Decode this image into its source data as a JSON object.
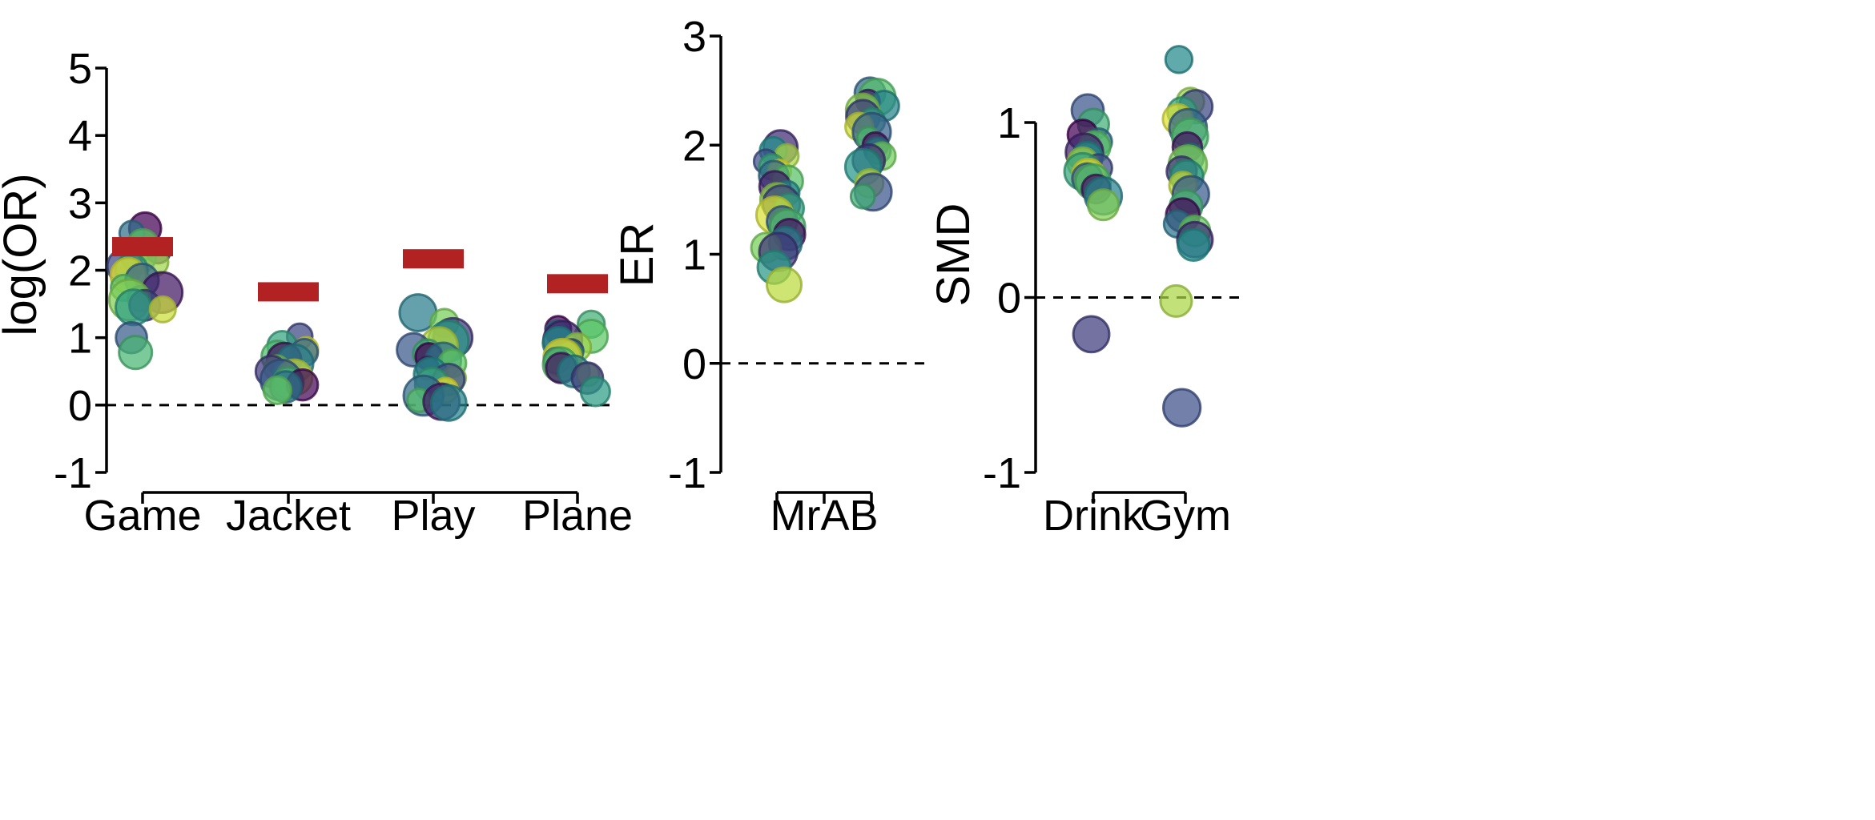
{
  "palette": [
    "#440154",
    "#3b528b",
    "#21918c",
    "#5ec962",
    "#fde725"
  ],
  "reference_color": "#b22222",
  "chart_data": [
    {
      "type": "scatter",
      "title": "",
      "xlabel": "",
      "ylabel": "log(OR)",
      "ylim": [
        -1,
        5
      ],
      "yticks": [
        "-1",
        "0",
        "1",
        "2",
        "3",
        "4",
        "5"
      ],
      "reference_line": 0,
      "categories": [
        "Game",
        "Jacket",
        "Play",
        "Plane"
      ],
      "reference_values": [
        2.35,
        1.68,
        2.17,
        1.8
      ],
      "points": [
        {
          "category": "Game",
          "values": [
            2.62,
            2.55,
            2.38,
            2.28,
            2.2,
            2.12,
            2.06,
            2.01,
            1.92,
            1.85,
            1.74,
            1.67,
            1.58,
            1.56,
            1.48,
            1.45,
            1.42,
            1.0,
            0.78
          ]
        },
        {
          "category": "Jacket",
          "values": [
            1.02,
            0.88,
            0.83,
            0.78,
            0.72,
            0.67,
            0.62,
            0.55,
            0.5,
            0.46,
            0.41,
            0.37,
            0.33,
            0.3,
            0.27,
            0.22
          ]
        },
        {
          "category": "Play",
          "values": [
            1.37,
            1.22,
            1.0,
            0.95,
            0.88,
            0.82,
            0.76,
            0.72,
            0.66,
            0.62,
            0.55,
            0.45,
            0.4,
            0.38,
            0.3,
            0.22,
            0.14,
            0.07,
            0.05,
            0.03
          ]
        },
        {
          "category": "Plane",
          "values": [
            1.2,
            1.13,
            1.08,
            1.02,
            0.96,
            0.92,
            0.86,
            0.8,
            0.75,
            0.7,
            0.66,
            0.6,
            0.55,
            0.5,
            0.45,
            0.4,
            0.2
          ]
        }
      ]
    },
    {
      "type": "scatter",
      "title": "",
      "xlabel": "",
      "ylabel": "ER",
      "ylim": [
        -1,
        3
      ],
      "yticks": [
        "-1",
        "0",
        "1",
        "2",
        "3"
      ],
      "reference_line": 0,
      "categories": [
        "MrAB"
      ],
      "points": [
        {
          "side": "left",
          "values": [
            1.98,
            1.95,
            1.9,
            1.85,
            1.8,
            1.76,
            1.72,
            1.67,
            1.62,
            1.56,
            1.5,
            1.46,
            1.42,
            1.36,
            1.3,
            1.25,
            1.18,
            1.1,
            1.06,
            1.02,
            0.88,
            0.72
          ]
        },
        {
          "side": "right",
          "values": [
            2.48,
            2.44,
            2.4,
            2.36,
            2.32,
            2.26,
            2.22,
            2.17,
            2.12,
            2.06,
            2.0,
            1.95,
            1.9,
            1.86,
            1.8,
            1.65,
            1.57,
            1.53
          ]
        }
      ]
    },
    {
      "type": "scatter",
      "title": "",
      "xlabel": "",
      "ylabel": "SMD",
      "ylim": [
        -1,
        1
      ],
      "yticks": [
        "-1",
        "0",
        "1"
      ],
      "reference_line": 0,
      "categories": [
        "Drink",
        "Gym"
      ],
      "points": [
        {
          "category": "Drink",
          "values": [
            1.07,
            0.99,
            0.93,
            0.89,
            0.86,
            0.83,
            0.8,
            0.77,
            0.74,
            0.72,
            0.7,
            0.68,
            0.66,
            0.62,
            0.58,
            0.53,
            -0.21
          ]
        },
        {
          "category": "Gym",
          "values": [
            1.36,
            1.12,
            1.09,
            1.06,
            1.02,
            0.97,
            0.92,
            0.86,
            0.8,
            0.76,
            0.72,
            0.69,
            0.64,
            0.59,
            0.52,
            0.47,
            0.42,
            0.38,
            0.33,
            0.3,
            -0.02,
            -0.63
          ]
        }
      ]
    }
  ]
}
